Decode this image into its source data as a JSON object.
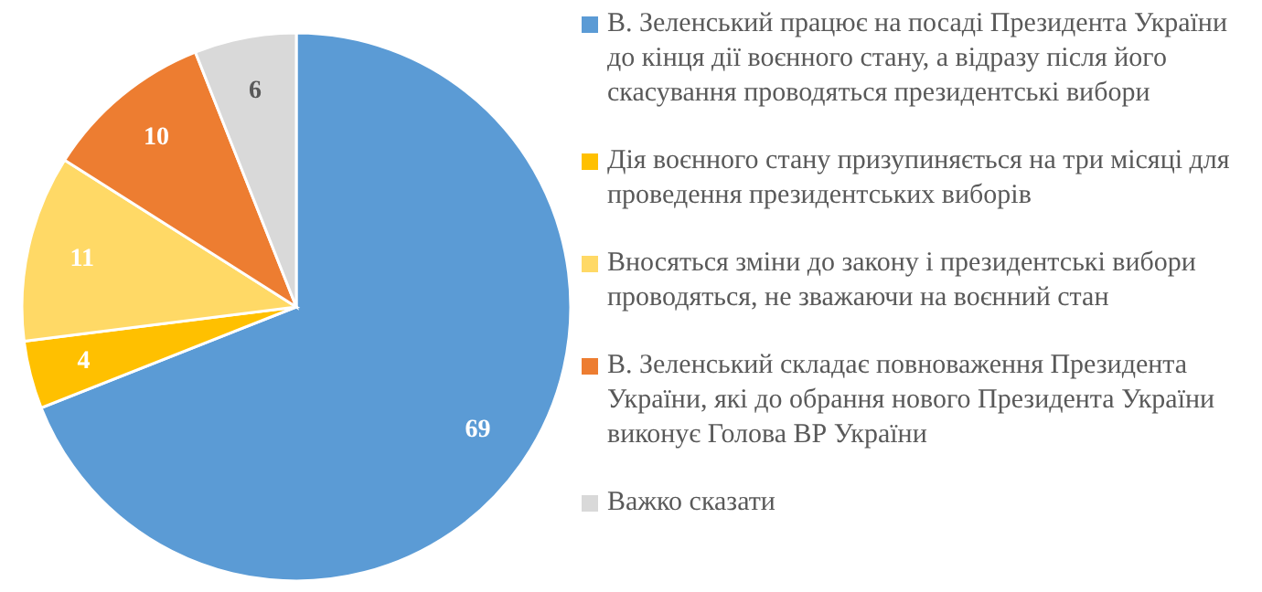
{
  "chart_data": {
    "type": "pie",
    "categories": [
      "В. Зеленський працює на посаді Президента України до кінця дії воєнного стану, а відразу після його скасування проводяться президентські вибори",
      "Дія воєнного стану призупиняється на три місяці для проведення президентських виборів",
      "Вносяться зміни до закону і президентські вибори проводяться, не зважаючи на воєнний стан",
      "В. Зеленський складає повноваження Президента України, які до обрання нового Президента України виконує Голова ВР України",
      "Важко сказати"
    ],
    "values": [
      69,
      4,
      11,
      10,
      6
    ],
    "colors": [
      "#5b9bd5",
      "#ffc000",
      "#ffd966",
      "#ed7d31",
      "#d9d9d9"
    ],
    "data_labels": true,
    "legend": "right"
  }
}
